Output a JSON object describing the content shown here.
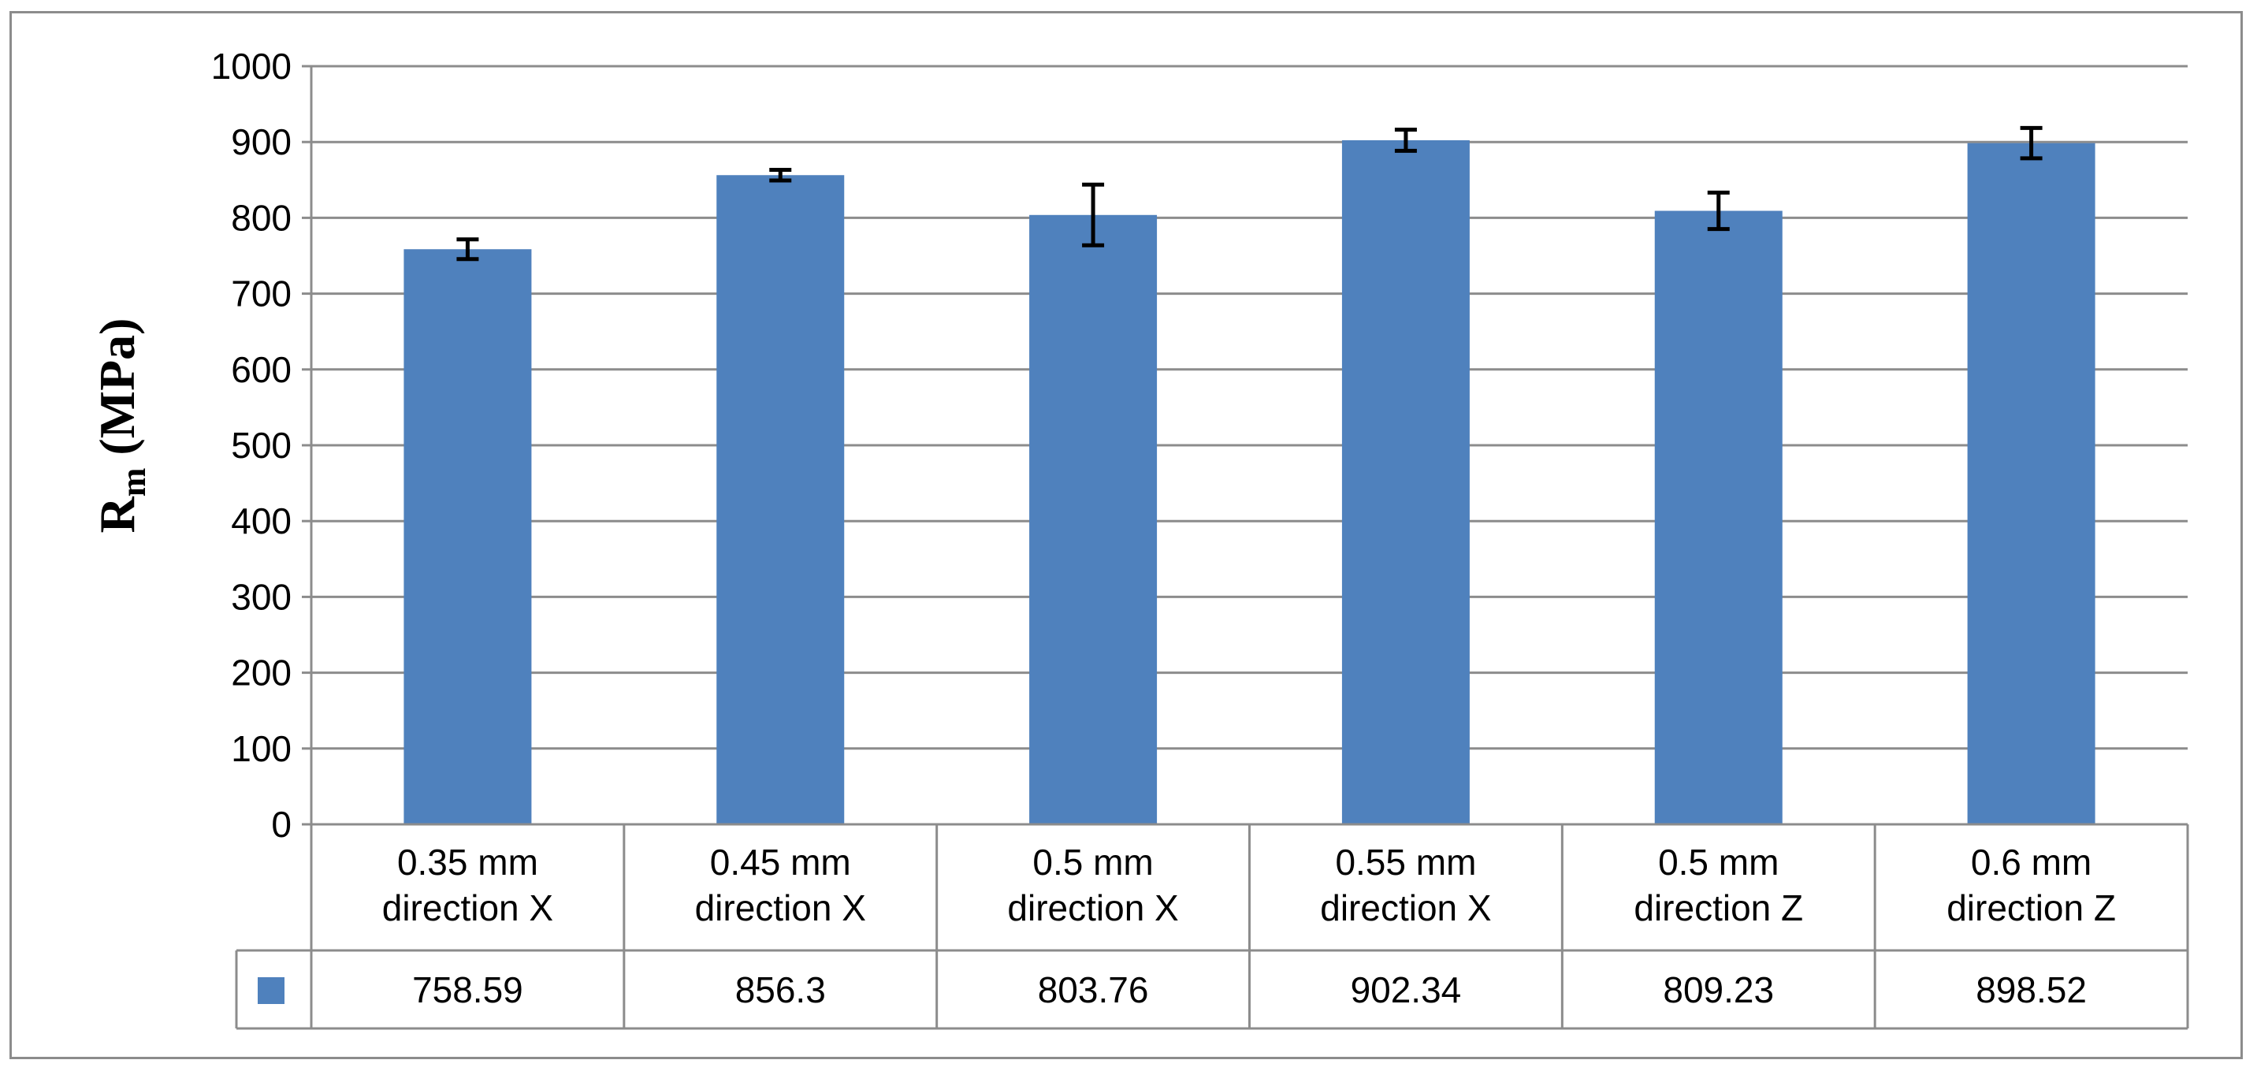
{
  "chart_data": {
    "type": "bar",
    "ylabel": "R",
    "ylabel_subscript": "m",
    "ylabel_unit": " (MPa)",
    "ylim": [
      0,
      1000
    ],
    "yticks": [
      "0",
      "100",
      "200",
      "300",
      "400",
      "500",
      "600",
      "700",
      "800",
      "900",
      "1000"
    ],
    "grid": true,
    "data_table": true,
    "bar_color": "#4f81bd",
    "categories": [
      [
        "0.35 mm",
        "direction X"
      ],
      [
        "0.45 mm",
        "direction X"
      ],
      [
        "0.5 mm",
        "direction X"
      ],
      [
        "0.55 mm",
        "direction X"
      ],
      [
        "0.5 mm",
        "direction Z"
      ],
      [
        "0.6 mm",
        "direction Z"
      ]
    ],
    "values": [
      758.59,
      856.3,
      803.76,
      902.34,
      809.23,
      898.52
    ],
    "value_labels": [
      "758.59",
      "856.3",
      "803.76",
      "902.34",
      "809.23",
      "898.52"
    ],
    "error": [
      13,
      7,
      40,
      14,
      24,
      20
    ]
  }
}
